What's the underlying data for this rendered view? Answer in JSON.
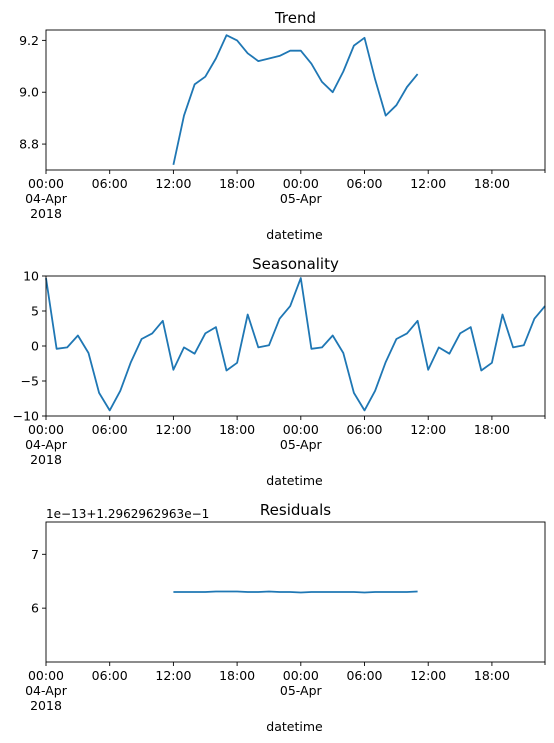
{
  "figure": {
    "line_color": "#1f77b4",
    "xaxis": {
      "label": "datetime",
      "ticks": [
        {
          "hour": 0,
          "lines": [
            "00:00",
            "04-Apr",
            "2018"
          ]
        },
        {
          "hour": 6,
          "lines": [
            "06:00"
          ]
        },
        {
          "hour": 12,
          "lines": [
            "12:00"
          ]
        },
        {
          "hour": 18,
          "lines": [
            "18:00"
          ]
        },
        {
          "hour": 24,
          "lines": [
            "00:00",
            "05-Apr"
          ]
        },
        {
          "hour": 30,
          "lines": [
            "06:00"
          ]
        },
        {
          "hour": 36,
          "lines": [
            "12:00"
          ]
        },
        {
          "hour": 42,
          "lines": [
            "18:00"
          ]
        }
      ],
      "xlim_hours": [
        0,
        47
      ]
    }
  },
  "chart_data": [
    {
      "type": "line",
      "title": "Trend",
      "xlabel": "datetime",
      "ylabel": "",
      "x_unit": "hours since 2018-04-04 00:00",
      "ylim": [
        8.7,
        9.24
      ],
      "yticks": [
        8.8,
        9.0,
        9.2
      ],
      "ytick_labels": [
        "8.8",
        "9.0",
        "9.2"
      ],
      "series": [
        {
          "x": [
            12,
            13,
            14,
            15,
            16,
            17,
            18,
            19,
            20,
            21,
            22,
            23,
            24,
            25,
            26,
            27,
            28,
            29,
            30,
            31,
            32,
            33,
            34,
            35
          ],
          "values": [
            8.72,
            8.91,
            9.03,
            9.06,
            9.13,
            9.22,
            9.2,
            9.15,
            9.12,
            9.13,
            9.14,
            9.16,
            9.16,
            9.11,
            9.04,
            9.0,
            9.08,
            9.18,
            9.21,
            9.05,
            8.91,
            8.95,
            9.02,
            9.07
          ]
        }
      ]
    },
    {
      "type": "line",
      "title": "Seasonality",
      "xlabel": "datetime",
      "ylabel": "",
      "x_unit": "hours since 2018-04-04 00:00",
      "ylim": [
        -10,
        10
      ],
      "yticks": [
        -10,
        -5,
        0,
        5,
        10
      ],
      "ytick_labels": [
        "−10",
        "−5",
        "0",
        "5",
        "10"
      ],
      "series": [
        {
          "x": [
            0,
            1,
            2,
            3,
            4,
            5,
            6,
            7,
            8,
            9,
            10,
            11,
            12,
            13,
            14,
            15,
            16,
            17,
            18,
            19,
            20,
            21,
            22,
            23,
            24,
            25,
            26,
            27,
            28,
            29,
            30,
            31,
            32,
            33,
            34,
            35,
            36,
            37,
            38,
            39,
            40,
            41,
            42,
            43,
            44,
            45,
            46,
            47
          ],
          "values": [
            9.7,
            -0.4,
            -0.2,
            1.5,
            -1,
            -6.7,
            -9.2,
            -6.4,
            -2.3,
            1,
            1.8,
            3.6,
            -3.4,
            -0.2,
            -1.1,
            1.8,
            2.7,
            -3.5,
            -2.4,
            4.5,
            -0.2,
            0.1,
            3.9,
            5.7,
            9.7,
            -0.4,
            -0.2,
            1.5,
            -1,
            -6.7,
            -9.2,
            -6.4,
            -2.3,
            1,
            1.8,
            3.6,
            -3.4,
            -0.2,
            -1.1,
            1.8,
            2.7,
            -3.5,
            -2.4,
            4.5,
            -0.2,
            0.1,
            3.9,
            5.7
          ]
        }
      ]
    },
    {
      "type": "line",
      "title": "Residuals",
      "xlabel": "datetime",
      "ylabel": "",
      "x_unit": "hours since 2018-04-04 00:00",
      "offset_label": "1e−13+1.2962962963e−1",
      "ylim": [
        5,
        7.6
      ],
      "yticks": [
        6,
        7
      ],
      "ytick_labels": [
        "6",
        "7"
      ],
      "series": [
        {
          "x": [
            12,
            13,
            14,
            15,
            16,
            17,
            18,
            19,
            20,
            21,
            22,
            23,
            24,
            25,
            26,
            27,
            28,
            29,
            30,
            31,
            32,
            33,
            34,
            35
          ],
          "values": [
            6.3,
            6.3,
            6.3,
            6.3,
            6.31,
            6.31,
            6.31,
            6.3,
            6.3,
            6.31,
            6.3,
            6.3,
            6.29,
            6.3,
            6.3,
            6.3,
            6.3,
            6.3,
            6.29,
            6.3,
            6.3,
            6.3,
            6.3,
            6.31
          ]
        }
      ]
    }
  ]
}
